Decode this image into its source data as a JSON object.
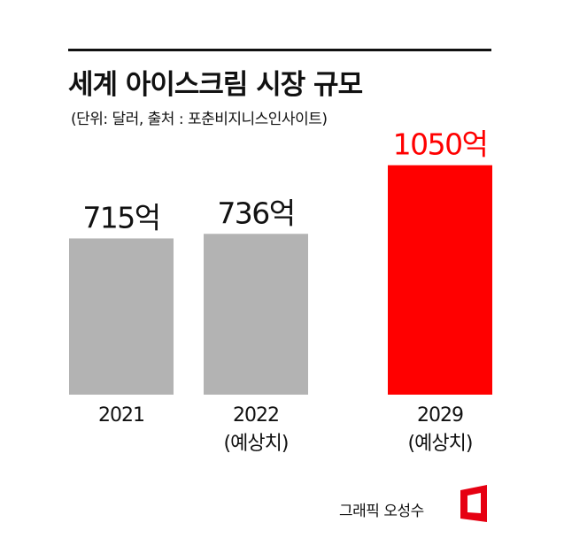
{
  "chart_data": {
    "type": "bar",
    "title": "세계 아이스크림 시장 규모",
    "subtitle": "(단위: 달러, 출처 : 포춘비지니스인사이트)",
    "categories": [
      "2021",
      "2022",
      "2029"
    ],
    "category_notes": [
      "",
      "(예상치)",
      "(예상치)"
    ],
    "values": [
      715,
      736,
      1050
    ],
    "value_labels": [
      "715억",
      "736억",
      "1050억"
    ],
    "colors": [
      "#b3b3b3",
      "#b3b3b3",
      "#ff0000"
    ],
    "value_label_colors": [
      "#111111",
      "#111111",
      "#ff0000"
    ],
    "ylim": [
      0,
      1300
    ],
    "grid": false
  },
  "credit": {
    "text": "그래픽 오성수",
    "logo_color": "#e60012"
  }
}
